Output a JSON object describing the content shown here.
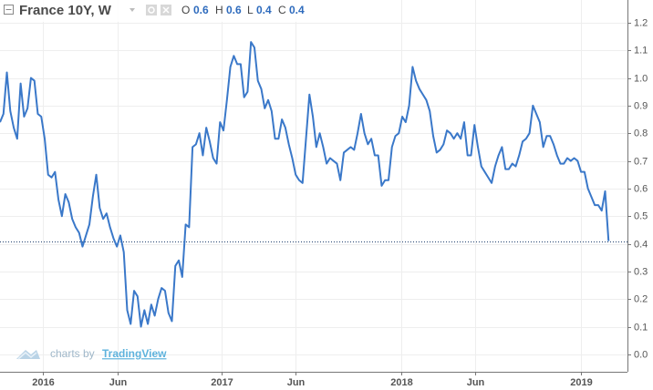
{
  "header": {
    "title": "France 10Y, W",
    "open_key": "O",
    "open": "0.6",
    "high_key": "H",
    "high": "0.6",
    "low_key": "L",
    "low": "0.4",
    "close_key": "C",
    "close": "0.4"
  },
  "branding": {
    "prefix": "charts by",
    "name": "TradingView"
  },
  "chart_data": {
    "type": "line",
    "series": [
      {
        "name": "France 10Y",
        "color": "#3a78c9",
        "values": [
          0.84,
          0.87,
          1.02,
          0.88,
          0.82,
          0.78,
          0.98,
          0.86,
          0.89,
          1.0,
          0.99,
          0.87,
          0.86,
          0.78,
          0.65,
          0.64,
          0.66,
          0.56,
          0.5,
          0.58,
          0.55,
          0.49,
          0.46,
          0.44,
          0.39,
          0.43,
          0.47,
          0.57,
          0.65,
          0.53,
          0.49,
          0.51,
          0.46,
          0.42,
          0.39,
          0.43,
          0.37,
          0.16,
          0.11,
          0.23,
          0.21,
          0.1,
          0.16,
          0.11,
          0.18,
          0.14,
          0.2,
          0.24,
          0.23,
          0.15,
          0.12,
          0.32,
          0.34,
          0.28,
          0.47,
          0.46,
          0.75,
          0.76,
          0.8,
          0.72,
          0.82,
          0.77,
          0.71,
          0.69,
          0.84,
          0.81,
          0.92,
          1.04,
          1.08,
          1.05,
          1.05,
          0.93,
          0.95,
          1.13,
          1.11,
          0.99,
          0.96,
          0.89,
          0.92,
          0.88,
          0.78,
          0.78,
          0.85,
          0.82,
          0.76,
          0.71,
          0.65,
          0.63,
          0.62,
          0.78,
          0.94,
          0.86,
          0.75,
          0.8,
          0.75,
          0.69,
          0.71,
          0.7,
          0.69,
          0.63,
          0.73,
          0.74,
          0.75,
          0.74,
          0.8,
          0.87,
          0.8,
          0.76,
          0.78,
          0.72,
          0.72,
          0.61,
          0.63,
          0.63,
          0.75,
          0.79,
          0.8,
          0.86,
          0.84,
          0.9,
          1.04,
          0.99,
          0.96,
          0.94,
          0.92,
          0.88,
          0.79,
          0.73,
          0.74,
          0.76,
          0.81,
          0.8,
          0.78,
          0.8,
          0.78,
          0.84,
          0.72,
          0.72,
          0.83,
          0.75,
          0.68,
          0.66,
          0.64,
          0.62,
          0.68,
          0.72,
          0.75,
          0.67,
          0.67,
          0.69,
          0.68,
          0.72,
          0.77,
          0.78,
          0.8,
          0.9,
          0.87,
          0.84,
          0.75,
          0.79,
          0.79,
          0.76,
          0.72,
          0.69,
          0.69,
          0.71,
          0.7,
          0.71,
          0.7,
          0.66,
          0.66,
          0.6,
          0.57,
          0.54,
          0.54,
          0.52,
          0.59,
          0.41
        ]
      }
    ],
    "xlim": [
      0,
      182.5
    ],
    "xticks": [
      {
        "value": 12.5,
        "label": "2016"
      },
      {
        "value": 34.2,
        "label": "Jun"
      },
      {
        "value": 64.5,
        "label": "2017"
      },
      {
        "value": 85.9,
        "label": "Jun"
      },
      {
        "value": 116.7,
        "label": "2018"
      },
      {
        "value": 138.2,
        "label": "Jun"
      },
      {
        "value": 169,
        "label": "2019"
      }
    ],
    "ylim": [
      -0.063,
      1.282
    ],
    "yticks": [
      {
        "value": 0,
        "label": "0.0"
      },
      0.1,
      0.2,
      0.3,
      0.4,
      0.5,
      0.6,
      0.7,
      0.8,
      0.9,
      {
        "value": 1,
        "label": "1.0"
      },
      1.1,
      1.2
    ],
    "grid": true,
    "last_value_line": true
  }
}
